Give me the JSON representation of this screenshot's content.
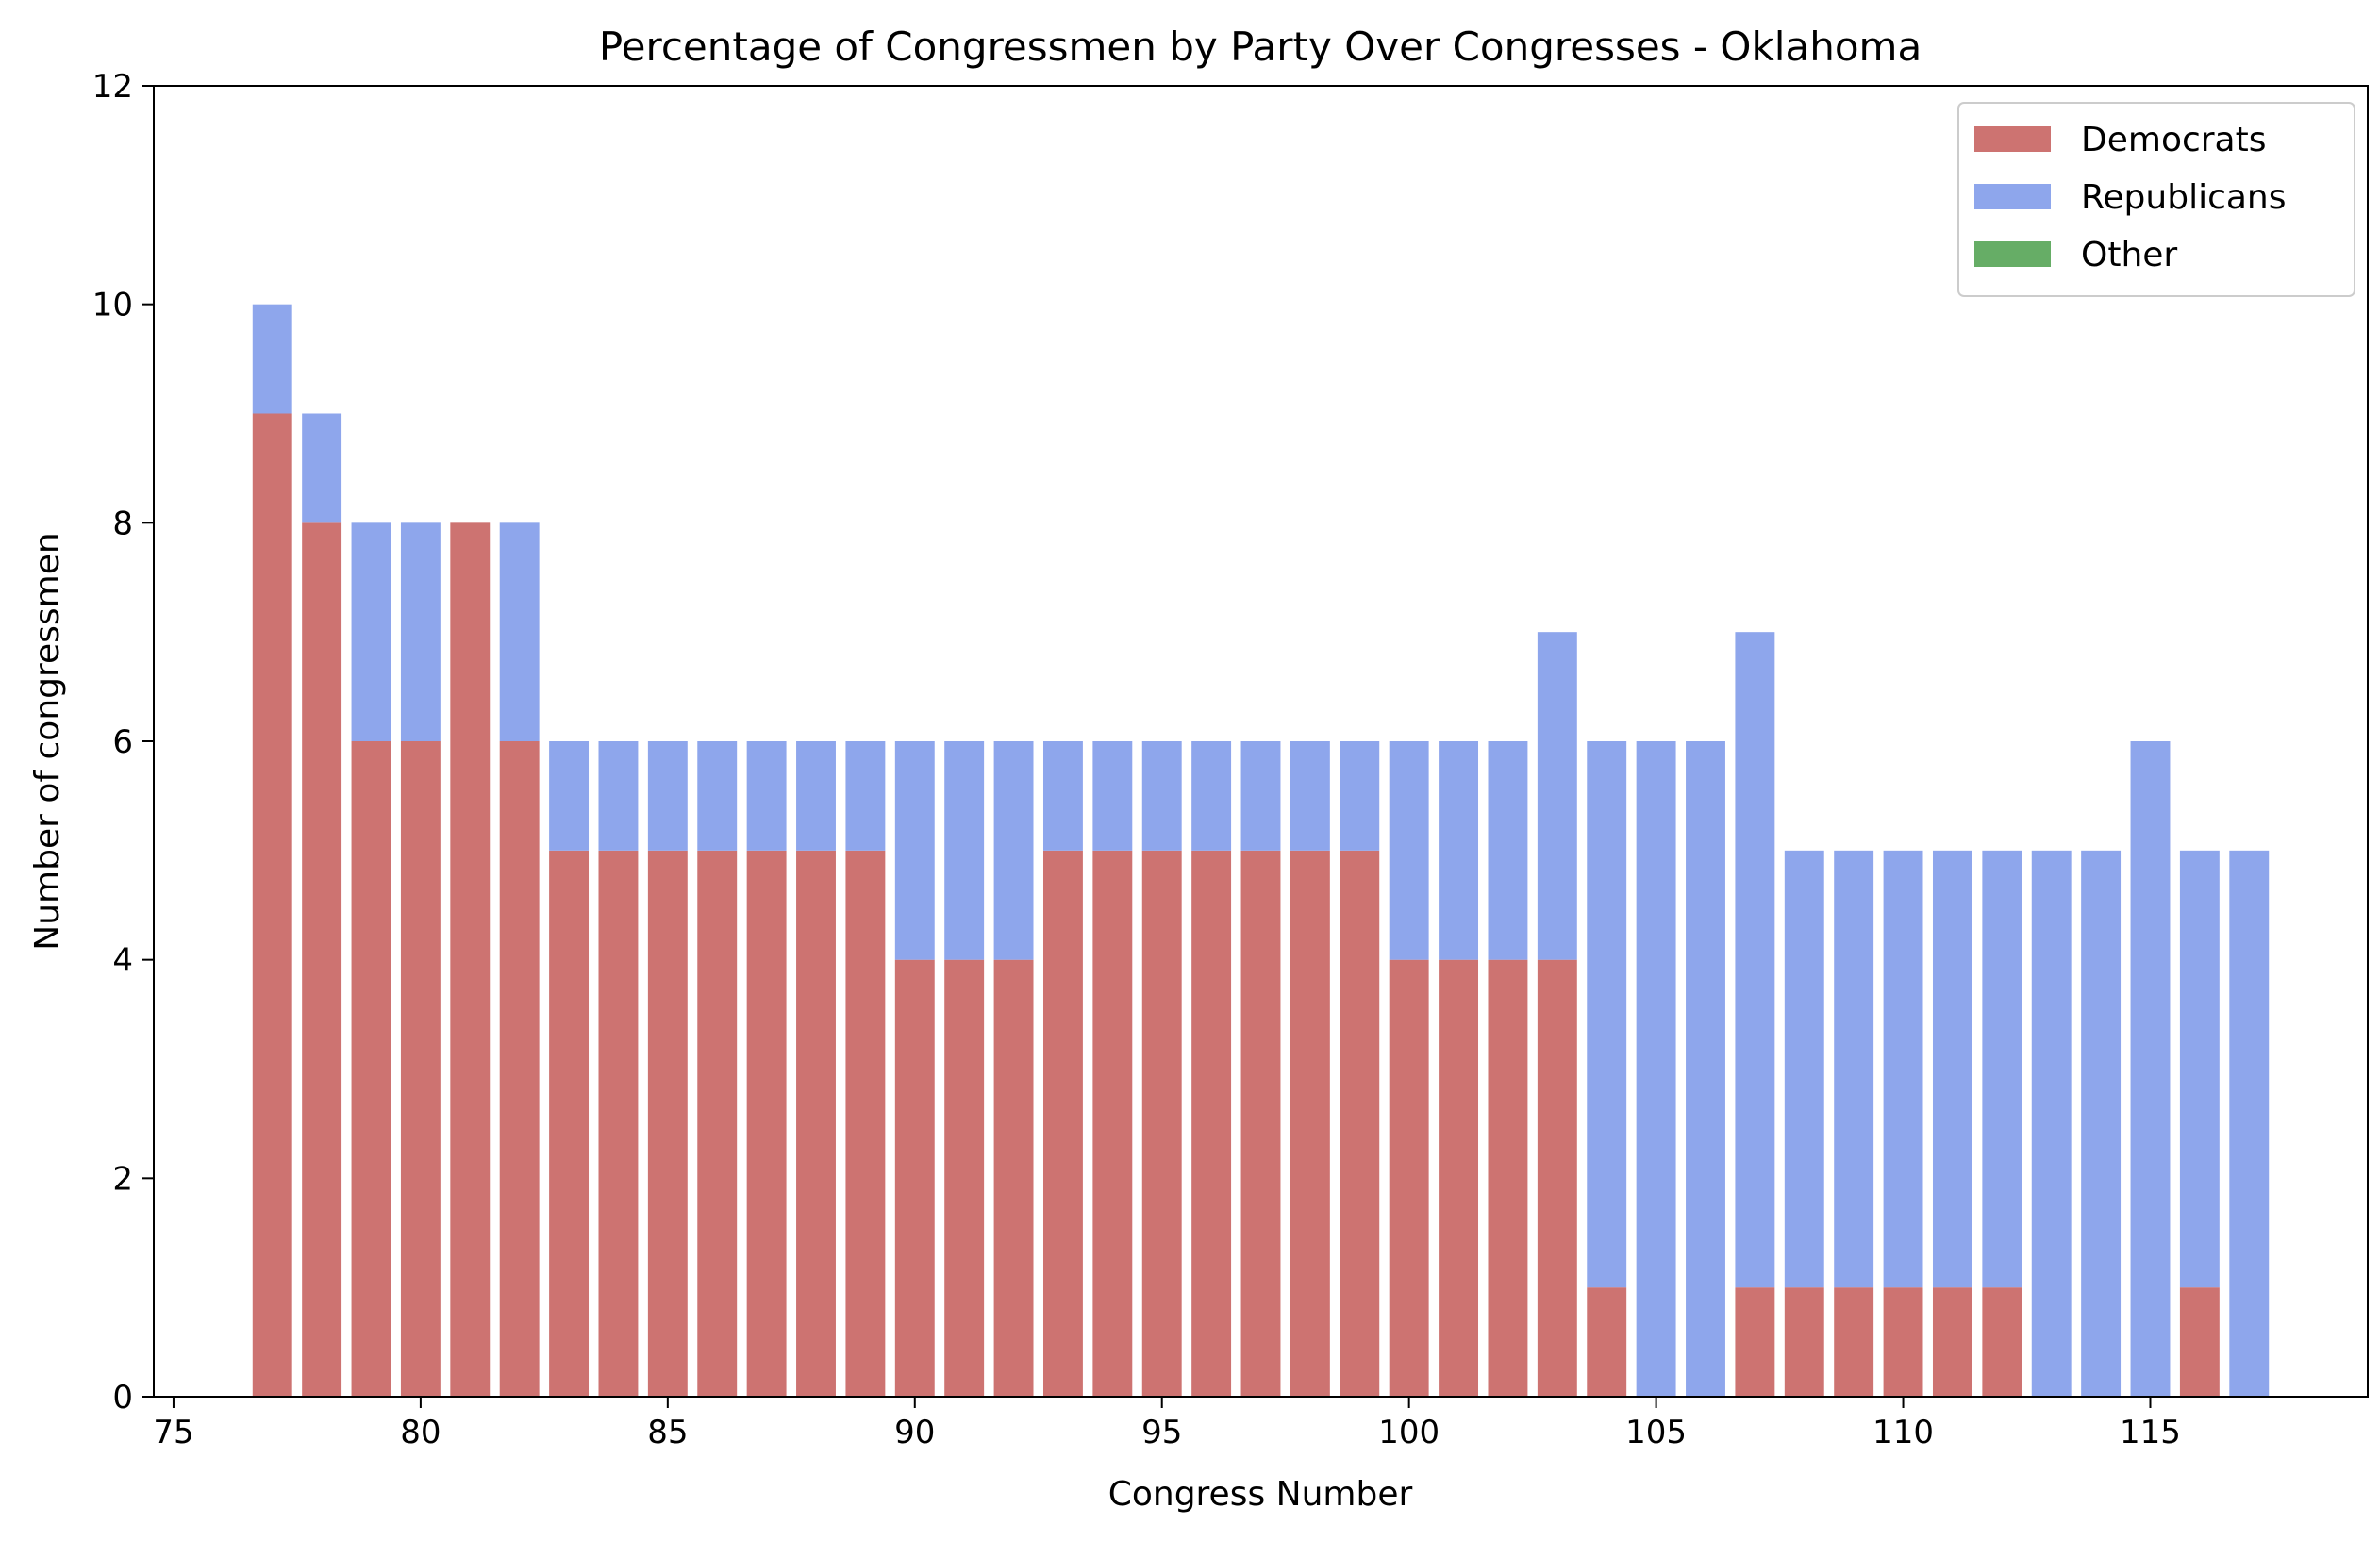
{
  "chart_data": {
    "type": "bar",
    "stacked": true,
    "title": "Percentage of Congressmen by Party Over Congresses - Oklahoma",
    "xlabel": "Congress Number",
    "ylabel": "Number of congressmen",
    "xlim": [
      74.6,
      119.4
    ],
    "ylim": [
      0,
      12
    ],
    "xticks": [
      75,
      80,
      85,
      90,
      95,
      100,
      105,
      110,
      115
    ],
    "yticks": [
      0,
      2,
      4,
      6,
      8,
      10,
      12
    ],
    "grid": false,
    "legend_position": "top-right",
    "x": [
      77,
      78,
      79,
      80,
      81,
      82,
      83,
      84,
      85,
      86,
      87,
      88,
      89,
      90,
      91,
      92,
      93,
      94,
      95,
      96,
      97,
      98,
      99,
      100,
      101,
      102,
      103,
      104,
      105,
      106,
      107,
      108,
      109,
      110,
      111,
      112,
      113,
      114,
      115,
      116,
      117
    ],
    "series": [
      {
        "name": "Democrats",
        "color": "#cd7371",
        "values": [
          9,
          8,
          6,
          6,
          8,
          6,
          5,
          5,
          5,
          5,
          5,
          5,
          5,
          4,
          4,
          4,
          5,
          5,
          5,
          5,
          5,
          5,
          5,
          4,
          4,
          4,
          4,
          1,
          0,
          0,
          1,
          1,
          1,
          1,
          1,
          1,
          0,
          0,
          0,
          1,
          0
        ]
      },
      {
        "name": "Republicans",
        "color": "#8ea6ec",
        "values": [
          1,
          1,
          2,
          2,
          0,
          2,
          1,
          1,
          1,
          1,
          1,
          1,
          1,
          2,
          2,
          2,
          1,
          1,
          1,
          1,
          1,
          1,
          1,
          2,
          2,
          2,
          3,
          5,
          6,
          6,
          6,
          4,
          4,
          4,
          4,
          4,
          5,
          5,
          6,
          4,
          5
        ]
      },
      {
        "name": "Other",
        "color": "#66ad66",
        "values": [
          0,
          0,
          0,
          0,
          0,
          0,
          0,
          0,
          0,
          0,
          0,
          0,
          0,
          0,
          0,
          0,
          0,
          0,
          0,
          0,
          0,
          0,
          0,
          0,
          0,
          0,
          0,
          0,
          0,
          0,
          0,
          0,
          0,
          0,
          0,
          0,
          0,
          0,
          0,
          0,
          0
        ]
      }
    ]
  }
}
